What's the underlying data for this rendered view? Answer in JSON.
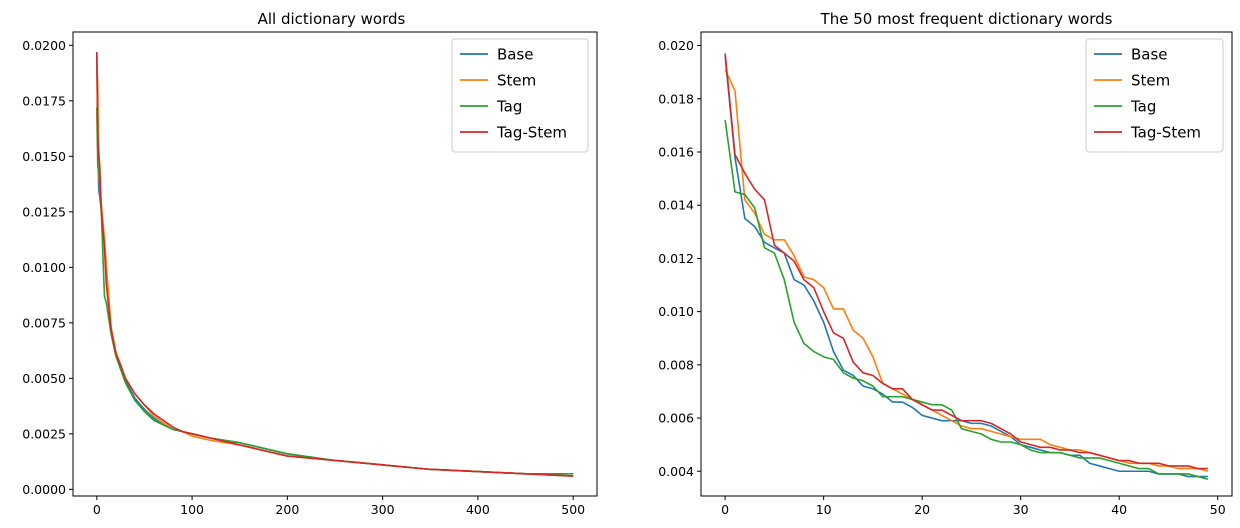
{
  "chart_data": [
    {
      "type": "line",
      "title": "All dictionary words",
      "xlabel": "",
      "ylabel": "",
      "xlim": [
        -25,
        525
      ],
      "ylim": [
        -0.0003,
        0.0206
      ],
      "xticks": [
        0,
        100,
        200,
        300,
        400,
        500
      ],
      "xtick_labels": [
        "0",
        "100",
        "200",
        "300",
        "400",
        "500"
      ],
      "yticks": [
        0.0,
        0.0025,
        0.005,
        0.0075,
        0.01,
        0.0125,
        0.015,
        0.0175,
        0.02
      ],
      "ytick_labels": [
        "0.0000",
        "0.0025",
        "0.0050",
        "0.0075",
        "0.0100",
        "0.0125",
        "0.0150",
        "0.0175",
        "0.0200"
      ],
      "grid": false,
      "legend_position": "top-right",
      "series": [
        {
          "name": "Base",
          "color": "#1f77b4",
          "x": [
            0,
            1,
            2,
            3,
            5,
            8,
            10,
            15,
            20,
            25,
            30,
            40,
            50,
            60,
            70,
            80,
            90,
            100,
            120,
            150,
            200,
            250,
            300,
            350,
            400,
            450,
            500
          ],
          "y": [
            0.0196,
            0.0158,
            0.0135,
            0.0132,
            0.0125,
            0.0112,
            0.0096,
            0.0072,
            0.0061,
            0.0055,
            0.0049,
            0.0041,
            0.0036,
            0.0032,
            0.0029,
            0.0027,
            0.0026,
            0.0025,
            0.0023,
            0.0021,
            0.0016,
            0.0013,
            0.0011,
            0.0009,
            0.0008,
            0.0007,
            0.0006
          ]
        },
        {
          "name": "Stem",
          "color": "#ff7f0e",
          "x": [
            0,
            1,
            2,
            3,
            5,
            8,
            10,
            15,
            20,
            25,
            30,
            40,
            50,
            60,
            70,
            80,
            90,
            100,
            120,
            150,
            200,
            250,
            300,
            350,
            400,
            450,
            500
          ],
          "y": [
            0.0191,
            0.0183,
            0.0142,
            0.0137,
            0.0127,
            0.0113,
            0.0101,
            0.0073,
            0.0062,
            0.0056,
            0.005,
            0.0043,
            0.0038,
            0.0033,
            0.003,
            0.0027,
            0.0026,
            0.0024,
            0.0022,
            0.002,
            0.0015,
            0.0013,
            0.0011,
            0.0009,
            0.0008,
            0.0007,
            0.0006
          ]
        },
        {
          "name": "Tag",
          "color": "#2ca02c",
          "x": [
            0,
            1,
            2,
            3,
            5,
            8,
            10,
            15,
            20,
            25,
            30,
            40,
            50,
            60,
            70,
            80,
            90,
            100,
            120,
            150,
            200,
            250,
            300,
            350,
            400,
            450,
            500
          ],
          "y": [
            0.0172,
            0.0145,
            0.0144,
            0.0139,
            0.0122,
            0.0087,
            0.0084,
            0.007,
            0.006,
            0.0054,
            0.0048,
            0.004,
            0.0035,
            0.0031,
            0.0029,
            0.0027,
            0.0026,
            0.0025,
            0.0023,
            0.0021,
            0.0016,
            0.0013,
            0.0011,
            0.0009,
            0.0008,
            0.0007,
            0.0007
          ]
        },
        {
          "name": "Tag-Stem",
          "color": "#d62728",
          "x": [
            0,
            1,
            2,
            3,
            5,
            8,
            10,
            15,
            20,
            25,
            30,
            40,
            50,
            60,
            70,
            80,
            90,
            100,
            120,
            150,
            200,
            250,
            300,
            350,
            400,
            450,
            500
          ],
          "y": [
            0.0197,
            0.0159,
            0.0152,
            0.0146,
            0.0124,
            0.0109,
            0.0092,
            0.0072,
            0.0061,
            0.0056,
            0.005,
            0.0043,
            0.0038,
            0.0034,
            0.0031,
            0.0028,
            0.0026,
            0.0025,
            0.0023,
            0.002,
            0.0015,
            0.0013,
            0.0011,
            0.0009,
            0.0008,
            0.0007,
            0.0006
          ]
        }
      ]
    },
    {
      "type": "line",
      "title": "The 50 most frequent dictionary words",
      "xlabel": "",
      "ylabel": "",
      "xlim": [
        -2.45,
        51.45
      ],
      "ylim": [
        0.00307,
        0.02051
      ],
      "xticks": [
        0,
        10,
        20,
        30,
        40,
        50
      ],
      "xtick_labels": [
        "0",
        "10",
        "20",
        "30",
        "40",
        "50"
      ],
      "yticks": [
        0.004,
        0.006,
        0.008,
        0.01,
        0.012,
        0.014,
        0.016,
        0.018,
        0.02
      ],
      "ytick_labels": [
        "0.004",
        "0.006",
        "0.008",
        "0.010",
        "0.012",
        "0.014",
        "0.016",
        "0.018",
        "0.020"
      ],
      "grid": false,
      "legend_position": "top-right",
      "series": [
        {
          "name": "Base",
          "color": "#1f77b4",
          "x": [
            0,
            1,
            2,
            3,
            4,
            5,
            6,
            7,
            8,
            9,
            10,
            11,
            12,
            13,
            14,
            15,
            16,
            17,
            18,
            19,
            20,
            21,
            22,
            23,
            24,
            25,
            26,
            27,
            28,
            29,
            30,
            31,
            32,
            33,
            34,
            35,
            36,
            37,
            38,
            39,
            40,
            41,
            42,
            43,
            44,
            45,
            46,
            47,
            48,
            49
          ],
          "y": [
            0.0196,
            0.0158,
            0.0135,
            0.0132,
            0.0126,
            0.0124,
            0.0122,
            0.0112,
            0.011,
            0.0104,
            0.0096,
            0.0085,
            0.0078,
            0.0076,
            0.0072,
            0.0071,
            0.0069,
            0.0066,
            0.0066,
            0.0064,
            0.0061,
            0.006,
            0.0059,
            0.0059,
            0.0059,
            0.0058,
            0.0058,
            0.0057,
            0.0055,
            0.0053,
            0.005,
            0.0049,
            0.0048,
            0.0047,
            0.0047,
            0.0046,
            0.0046,
            0.0043,
            0.0042,
            0.0041,
            0.004,
            0.004,
            0.004,
            0.004,
            0.0039,
            0.0039,
            0.0039,
            0.0038,
            0.0038,
            0.0038
          ]
        },
        {
          "name": "Stem",
          "color": "#ff7f0e",
          "x": [
            0,
            1,
            2,
            3,
            4,
            5,
            6,
            7,
            8,
            9,
            10,
            11,
            12,
            13,
            14,
            15,
            16,
            17,
            18,
            19,
            20,
            21,
            22,
            23,
            24,
            25,
            26,
            27,
            28,
            29,
            30,
            31,
            32,
            33,
            34,
            35,
            36,
            37,
            38,
            39,
            40,
            41,
            42,
            43,
            44,
            45,
            46,
            47,
            48,
            49
          ],
          "y": [
            0.0191,
            0.0183,
            0.0142,
            0.0137,
            0.0129,
            0.0127,
            0.0127,
            0.0121,
            0.0113,
            0.0112,
            0.0109,
            0.0101,
            0.0101,
            0.0093,
            0.009,
            0.0083,
            0.0073,
            0.0071,
            0.0069,
            0.0067,
            0.0065,
            0.0063,
            0.0061,
            0.0059,
            0.0057,
            0.0056,
            0.0056,
            0.0055,
            0.0054,
            0.0053,
            0.0052,
            0.0052,
            0.0052,
            0.005,
            0.0049,
            0.0048,
            0.0048,
            0.0047,
            0.0046,
            0.0045,
            0.0044,
            0.0043,
            0.0043,
            0.0043,
            0.0042,
            0.0042,
            0.0041,
            0.0041,
            0.0041,
            0.004
          ]
        },
        {
          "name": "Tag",
          "color": "#2ca02c",
          "x": [
            0,
            1,
            2,
            3,
            4,
            5,
            6,
            7,
            8,
            9,
            10,
            11,
            12,
            13,
            14,
            15,
            16,
            17,
            18,
            19,
            20,
            21,
            22,
            23,
            24,
            25,
            26,
            27,
            28,
            29,
            30,
            31,
            32,
            33,
            34,
            35,
            36,
            37,
            38,
            39,
            40,
            41,
            42,
            43,
            44,
            45,
            46,
            47,
            48,
            49
          ],
          "y": [
            0.0172,
            0.0145,
            0.0144,
            0.0139,
            0.0124,
            0.0122,
            0.0112,
            0.0096,
            0.0088,
            0.0085,
            0.0083,
            0.0082,
            0.0077,
            0.0075,
            0.0074,
            0.0072,
            0.0068,
            0.0068,
            0.0068,
            0.0067,
            0.0066,
            0.0065,
            0.0065,
            0.0063,
            0.0056,
            0.0055,
            0.0054,
            0.0052,
            0.0051,
            0.0051,
            0.005,
            0.0048,
            0.0047,
            0.0047,
            0.0047,
            0.0046,
            0.0045,
            0.0045,
            0.0045,
            0.0044,
            0.0043,
            0.0042,
            0.0041,
            0.0041,
            0.0039,
            0.0039,
            0.0039,
            0.0039,
            0.0038,
            0.0037
          ]
        },
        {
          "name": "Tag-Stem",
          "color": "#d62728",
          "x": [
            0,
            1,
            2,
            3,
            4,
            5,
            6,
            7,
            8,
            9,
            10,
            11,
            12,
            13,
            14,
            15,
            16,
            17,
            18,
            19,
            20,
            21,
            22,
            23,
            24,
            25,
            26,
            27,
            28,
            29,
            30,
            31,
            32,
            33,
            34,
            35,
            36,
            37,
            38,
            39,
            40,
            41,
            42,
            43,
            44,
            45,
            46,
            47,
            48,
            49
          ],
          "y": [
            0.0197,
            0.0159,
            0.0152,
            0.0146,
            0.0142,
            0.0125,
            0.0122,
            0.0119,
            0.0112,
            0.0109,
            0.01,
            0.0092,
            0.009,
            0.0081,
            0.0077,
            0.0076,
            0.0073,
            0.0071,
            0.0071,
            0.0067,
            0.0065,
            0.0063,
            0.0063,
            0.0061,
            0.0059,
            0.0059,
            0.0059,
            0.0058,
            0.0056,
            0.0054,
            0.0051,
            0.005,
            0.0049,
            0.0049,
            0.0048,
            0.0048,
            0.0047,
            0.0047,
            0.0046,
            0.0045,
            0.0044,
            0.0044,
            0.0043,
            0.0043,
            0.0043,
            0.0042,
            0.0042,
            0.0042,
            0.0041,
            0.0041
          ]
        }
      ]
    }
  ]
}
